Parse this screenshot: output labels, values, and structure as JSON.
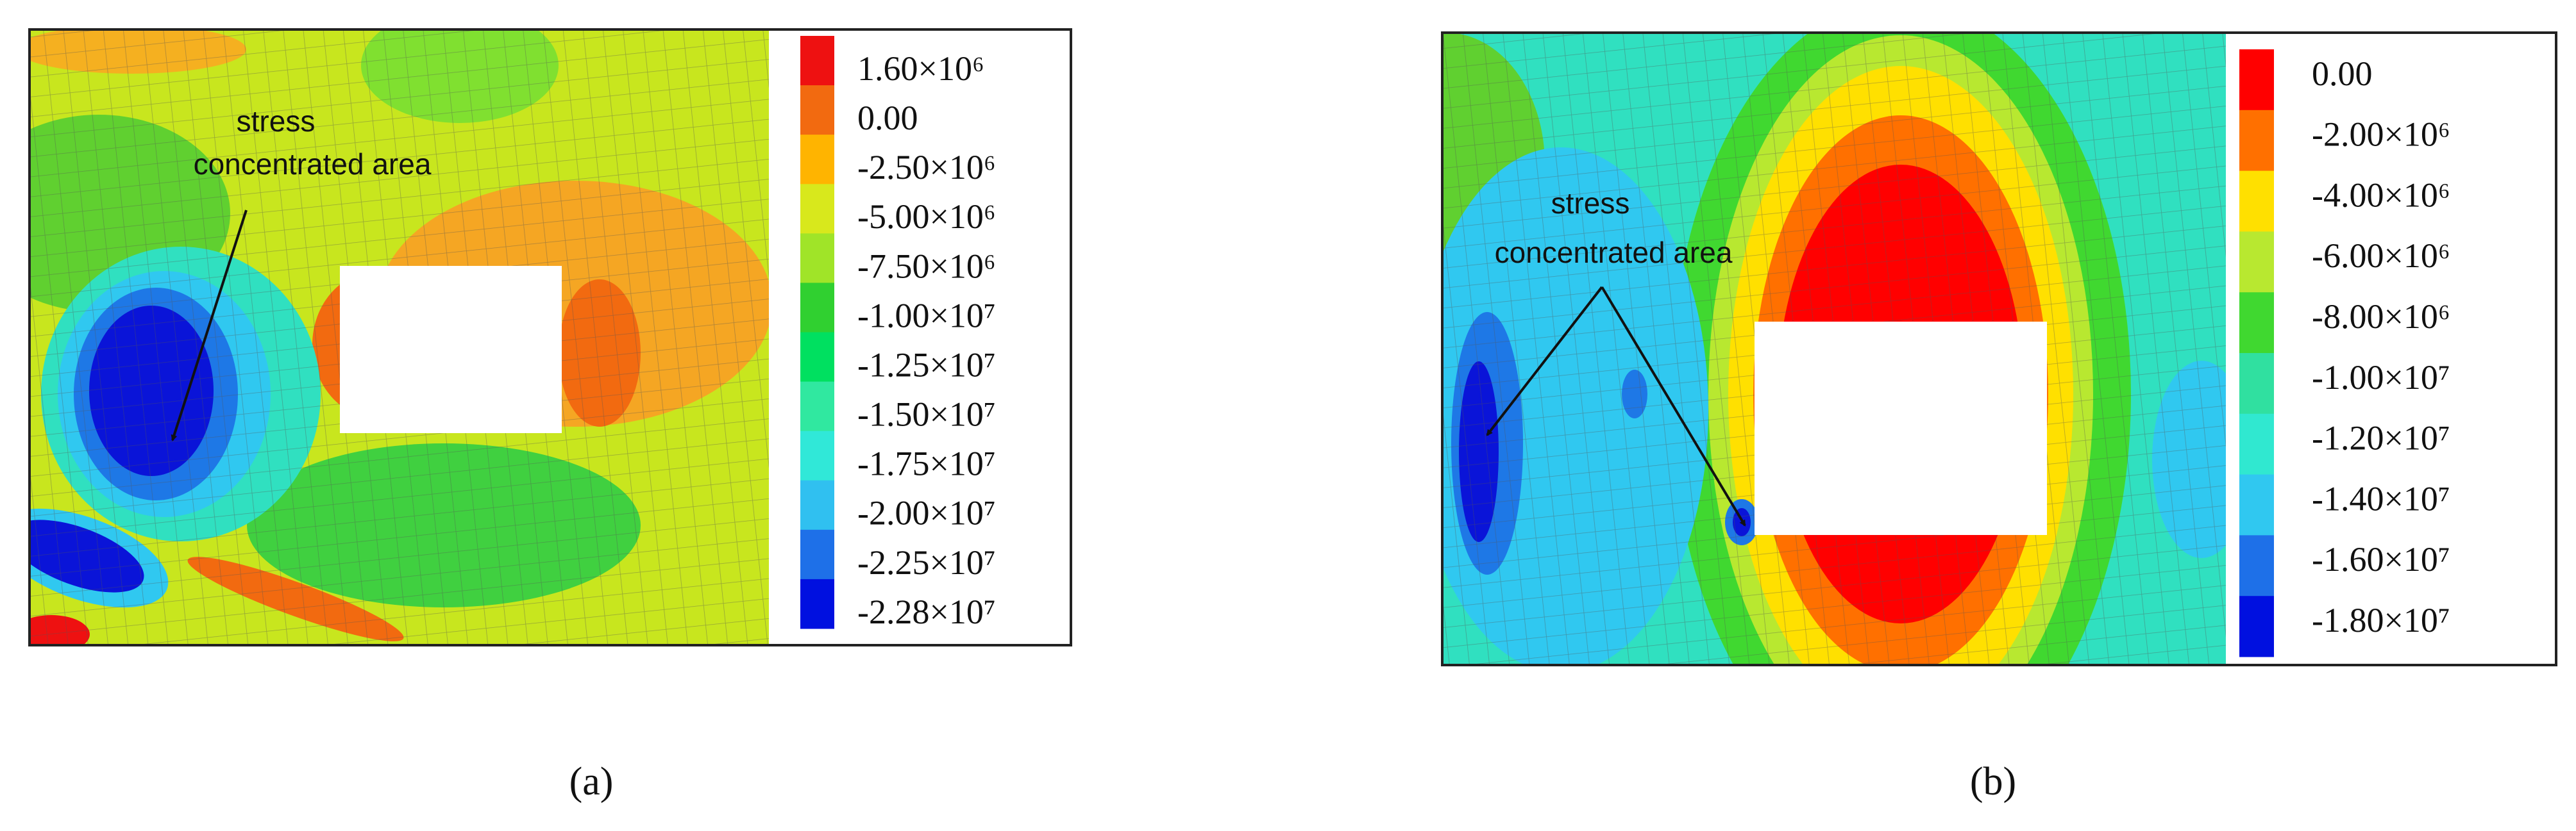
{
  "panels": [
    {
      "label": "(a)",
      "annotation": [
        "stress",
        "concentrated area"
      ],
      "legend": [
        {
          "label": "1.60×10⁶",
          "color": "#ee1111"
        },
        {
          "label": "0.00",
          "color": "#f26a10"
        },
        {
          "label": "-2.50×10⁶",
          "color": "#ffb400"
        },
        {
          "label": "-5.00×10⁶",
          "color": "#d8e81c"
        },
        {
          "label": "-7.50×10⁶",
          "color": "#a0e428"
        },
        {
          "label": "-1.00×10⁷",
          "color": "#30d030"
        },
        {
          "label": "-1.25×10⁷",
          "color": "#00e060"
        },
        {
          "label": "-1.50×10⁷",
          "color": "#30e8a0"
        },
        {
          "label": "-1.75×10⁷",
          "color": "#30e8d8"
        },
        {
          "label": "-2.00×10⁷",
          "color": "#30c0f0"
        },
        {
          "label": "-2.25×10⁷",
          "color": "#1e70e8"
        },
        {
          "label": "-2.28×10⁷",
          "color": "#0010e0"
        }
      ]
    },
    {
      "label": "(b)",
      "annotation": [
        "stress",
        "concentrated area"
      ],
      "legend": [
        {
          "label": "0.00",
          "color": "#ff0000"
        },
        {
          "label": "-2.00×10⁶",
          "color": "#ff7000"
        },
        {
          "label": "-4.00×10⁶",
          "color": "#ffe000"
        },
        {
          "label": "-6.00×10⁶",
          "color": "#b8e830"
        },
        {
          "label": "-8.00×10⁶",
          "color": "#40d830"
        },
        {
          "label": "-1.00×10⁷",
          "color": "#30e0a0"
        },
        {
          "label": "-1.20×10⁷",
          "color": "#30e8d0"
        },
        {
          "label": "-1.40×10⁷",
          "color": "#30c8f0"
        },
        {
          "label": "-1.60×10⁷",
          "color": "#1e70e8"
        },
        {
          "label": "-1.80×10⁷",
          "color": "#0010e0"
        }
      ]
    }
  ]
}
